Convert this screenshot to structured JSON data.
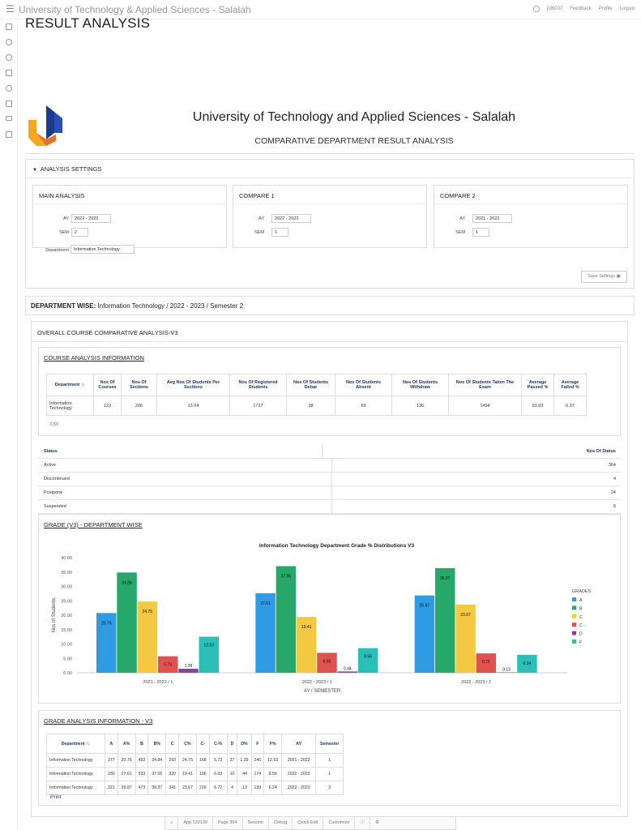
{
  "app": {
    "title": "University of Technology & Applied Sciences - Salalah"
  },
  "topnav": {
    "user": "ji36037",
    "feedback": "Feedback",
    "profile": "Profile",
    "logout": "Logout"
  },
  "page": {
    "title": "RESULT ANALYSIS"
  },
  "header": {
    "university": "University of Technology and Applied Sciences - Salalah",
    "report_title": "COMPARATIVE DEPARTMENT RESULT ANALYSIS"
  },
  "settings": {
    "heading": "ANALYSIS SETTINGS",
    "main": {
      "title": "MAIN ANALYSIS",
      "ay_label": "AY",
      "ay": "2022 - 2023",
      "sem_label": "SEM",
      "sem": "2",
      "dept_label": "Department",
      "dept": "Information Technology"
    },
    "compare1": {
      "title": "COMPARE 1",
      "ay_label": "AY",
      "ay": "2022 - 2023",
      "sem_label": "SEM",
      "sem": "1"
    },
    "compare2": {
      "title": "COMPARE 2",
      "ay_label": "AY",
      "ay": "2021 - 2022",
      "sem_label": "SEM",
      "sem": "1"
    },
    "save_label": "Save Settings"
  },
  "dept_wise": {
    "label": "DEPARTMENT WISE:",
    "value": "Information Technology / 2022 - 2023 / Semester 2"
  },
  "overall": {
    "title": "OVERALL COURSE COMPARATIVE ANALYSIS-V3"
  },
  "course_info": {
    "title": "COURSE ANALYSIS INFORMATION",
    "headers": [
      "Department ↑↓",
      "Nos Of Courses",
      "Nos Of Sections",
      "Avg Nos Of Students Per Sections",
      "Nos Of Registered Students",
      "Nos Of Students Debar",
      "Nos Of Students Absent",
      "Nos Of Students Withdraw",
      "Nos Of Students Taken The Exam",
      "Average Passed %",
      "Average Failed %"
    ],
    "row": [
      "Information Technology",
      "122",
      "206",
      "13.04",
      "1727",
      "38",
      "59",
      "136",
      "1494",
      "93.63",
      "6.37"
    ],
    "csv_label": "CSV"
  },
  "status": {
    "header": "Status",
    "count_header": "Nos Of Status",
    "rows": [
      {
        "name": "Active",
        "count": "364"
      },
      {
        "name": "Discontinued",
        "count": "4"
      },
      {
        "name": "Postpone",
        "count": "24"
      },
      {
        "name": "Suspended",
        "count": "6"
      }
    ]
  },
  "grade_section": {
    "title": "GRADE (V3) - DEPARTMENT WISE"
  },
  "chart_data": {
    "type": "bar",
    "title": "Information Technology Department Grade % Distributions V3",
    "xlabel": "AY / SEMESTER",
    "ylabel": "Nos of Students",
    "ylim": [
      0,
      40
    ],
    "yticks": [
      "0.00",
      "5.00",
      "10.00",
      "15.00",
      "20.00",
      "25.00",
      "30.00",
      "35.00",
      "40.00"
    ],
    "legend_title": "GRADES",
    "categories": [
      "2021 - 2022 / 1",
      "2022 - 2023 / 1",
      "2022 - 2023 / 2"
    ],
    "series": [
      {
        "name": "A",
        "color": "#2e9be3",
        "values": [
          20.76,
          27.61,
          26.87
        ]
      },
      {
        "name": "B",
        "color": "#27a86b",
        "values": [
          34.84,
          37.05,
          36.37
        ]
      },
      {
        "name": "C",
        "color": "#f5c842",
        "values": [
          24.75,
          19.41,
          23.67
        ]
      },
      {
        "name": "C -",
        "color": "#e0524f",
        "values": [
          5.73,
          6.93,
          6.72
        ]
      },
      {
        "name": "D",
        "color": "#8a3fa8",
        "values": [
          1.39,
          0.44,
          0.13
        ]
      },
      {
        "name": "F",
        "color": "#2cbfb8",
        "values": [
          12.53,
          8.56,
          6.24
        ]
      }
    ],
    "grid": false,
    "legend": "right"
  },
  "grade_table": {
    "title": "GRADE ANALYSIS INFORMATION - V3",
    "headers": [
      "Department ↑↓",
      "A",
      "A%",
      "B",
      "B%",
      "C",
      "C%",
      "C-",
      "C-%",
      "D",
      "D%",
      "F",
      "F%",
      "AY",
      "Semester"
    ],
    "rows": [
      [
        "Information Technology",
        "377",
        "20.76",
        "492",
        "34.84",
        "293",
        "24.75",
        "168",
        "5.73",
        "37",
        "1.39",
        "246",
        "12.53",
        "2021 - 2022",
        "1"
      ],
      [
        "Information Technology",
        "330",
        "27.61",
        "533",
        "37.05",
        "320",
        "19.41",
        "196",
        "6.93",
        "10",
        ".44",
        "174",
        "8.56",
        "2022 - 2023",
        "1"
      ],
      [
        "Information Technology",
        "321",
        "26.87",
        "473",
        "36.37",
        "341",
        "23.67",
        "216",
        "6.72",
        "4",
        ".13",
        "139",
        "6.24",
        "2022 - 2023",
        "2"
      ]
    ],
    "print_label": "Print"
  },
  "footer": {
    "app": "App 132139",
    "page": "Page 304",
    "session": "Session",
    "debug": "Debug",
    "quick_edit": "Quick Edit",
    "customize": "Customize"
  }
}
